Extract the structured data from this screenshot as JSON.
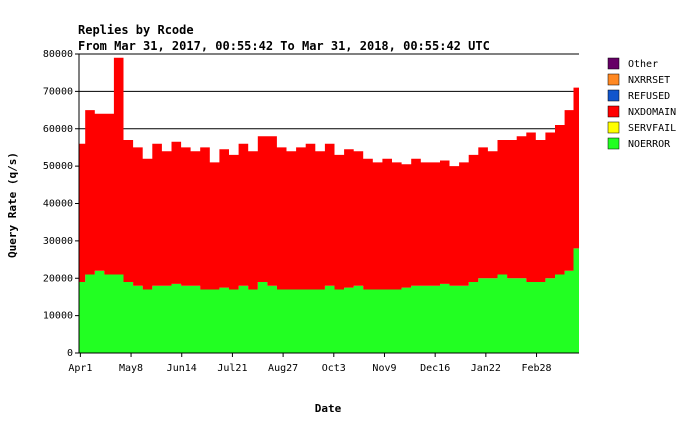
{
  "chart_data": {
    "type": "area",
    "stacked": true,
    "title": "Replies by Rcode",
    "subtitle": "From Mar 31, 2017, 00:55:42 To Mar 31, 2018, 00:55:42 UTC",
    "xlabel": "Date",
    "ylabel": "Query Rate (q/s)",
    "ylim": [
      0,
      80000
    ],
    "yticks": [
      0,
      10000,
      20000,
      30000,
      40000,
      50000,
      60000,
      70000,
      80000
    ],
    "xlim": [
      "2017-03-31",
      "2018-03-31"
    ],
    "xticks": [
      {
        "date": "2017-04-01",
        "label": "Apr1"
      },
      {
        "date": "2017-05-08",
        "label": "May8"
      },
      {
        "date": "2017-06-14",
        "label": "Jun14"
      },
      {
        "date": "2017-07-21",
        "label": "Jul21"
      },
      {
        "date": "2017-08-27",
        "label": "Aug27"
      },
      {
        "date": "2017-10-03",
        "label": "Oct3"
      },
      {
        "date": "2017-11-09",
        "label": "Nov9"
      },
      {
        "date": "2017-12-16",
        "label": "Dec16"
      },
      {
        "date": "2018-01-22",
        "label": "Jan22"
      },
      {
        "date": "2018-02-28",
        "label": "Feb28"
      }
    ],
    "grid": {
      "horizontal_lines_at": [
        60000,
        70000,
        80000
      ]
    },
    "legend": {
      "placement": "right"
    },
    "x": [
      "2017-04-01",
      "2017-04-08",
      "2017-04-15",
      "2017-04-22",
      "2017-04-29",
      "2017-05-06",
      "2017-05-13",
      "2017-05-20",
      "2017-05-27",
      "2017-06-03",
      "2017-06-10",
      "2017-06-17",
      "2017-06-24",
      "2017-07-01",
      "2017-07-08",
      "2017-07-15",
      "2017-07-22",
      "2017-07-29",
      "2017-08-05",
      "2017-08-12",
      "2017-08-19",
      "2017-08-26",
      "2017-09-02",
      "2017-09-09",
      "2017-09-16",
      "2017-09-23",
      "2017-09-30",
      "2017-10-07",
      "2017-10-14",
      "2017-10-21",
      "2017-10-28",
      "2017-11-04",
      "2017-11-11",
      "2017-11-18",
      "2017-11-25",
      "2017-12-02",
      "2017-12-09",
      "2017-12-16",
      "2017-12-23",
      "2017-12-30",
      "2018-01-06",
      "2018-01-13",
      "2018-01-20",
      "2018-01-27",
      "2018-02-03",
      "2018-02-10",
      "2018-02-17",
      "2018-02-24",
      "2018-03-03",
      "2018-03-10",
      "2018-03-17",
      "2018-03-24",
      "2018-03-30"
    ],
    "series": [
      {
        "name": "Other",
        "color": "#660066",
        "values": [
          0,
          0,
          0,
          0,
          0,
          0,
          0,
          0,
          0,
          0,
          0,
          0,
          0,
          0,
          0,
          0,
          0,
          0,
          0,
          0,
          0,
          0,
          0,
          0,
          0,
          0,
          0,
          0,
          0,
          0,
          0,
          0,
          0,
          0,
          0,
          0,
          0,
          0,
          0,
          0,
          0,
          0,
          0,
          0,
          0,
          0,
          0,
          0,
          0,
          0,
          0,
          0,
          0
        ]
      },
      {
        "name": "NXRRSET",
        "color": "#ff8822",
        "values": [
          0,
          0,
          0,
          0,
          0,
          0,
          0,
          0,
          0,
          0,
          0,
          0,
          0,
          0,
          0,
          0,
          0,
          0,
          0,
          0,
          0,
          0,
          0,
          0,
          0,
          0,
          0,
          0,
          0,
          0,
          0,
          0,
          0,
          0,
          0,
          0,
          0,
          0,
          0,
          0,
          0,
          0,
          0,
          0,
          0,
          0,
          0,
          0,
          0,
          0,
          0,
          0,
          0
        ]
      },
      {
        "name": "REFUSED",
        "color": "#1155cc",
        "values": [
          0,
          0,
          0,
          0,
          0,
          0,
          0,
          0,
          0,
          0,
          0,
          0,
          0,
          0,
          0,
          0,
          0,
          0,
          0,
          0,
          0,
          0,
          0,
          0,
          0,
          0,
          0,
          0,
          0,
          0,
          0,
          0,
          0,
          0,
          0,
          0,
          0,
          0,
          0,
          0,
          0,
          0,
          0,
          0,
          0,
          0,
          0,
          0,
          0,
          0,
          0,
          0,
          0
        ]
      },
      {
        "name": "NXDOMAIN",
        "color": "#ff0000",
        "values": [
          37000,
          44000,
          42000,
          43000,
          58000,
          38000,
          37000,
          35000,
          38000,
          36000,
          38000,
          37000,
          36000,
          38000,
          34000,
          37000,
          36000,
          38000,
          37000,
          39000,
          40000,
          38000,
          37000,
          38000,
          39000,
          37000,
          38000,
          36000,
          37000,
          36000,
          35000,
          34000,
          35000,
          34000,
          33000,
          34000,
          33000,
          33000,
          33000,
          32000,
          33000,
          34000,
          35000,
          34000,
          36000,
          37000,
          38000,
          40000,
          38000,
          39000,
          40000,
          43000,
          43000
        ]
      },
      {
        "name": "SERVFAIL",
        "color": "#ffff00",
        "values": [
          0,
          0,
          0,
          0,
          0,
          0,
          0,
          0,
          0,
          0,
          0,
          0,
          0,
          0,
          0,
          0,
          0,
          0,
          0,
          0,
          0,
          0,
          0,
          0,
          0,
          0,
          0,
          0,
          0,
          0,
          0,
          0,
          0,
          0,
          0,
          0,
          0,
          0,
          0,
          0,
          0,
          0,
          0,
          0,
          0,
          0,
          0,
          0,
          0,
          0,
          0,
          0,
          0
        ]
      },
      {
        "name": "NOERROR",
        "color": "#22ff22",
        "values": [
          19000,
          21000,
          22000,
          21000,
          21000,
          19000,
          18000,
          17000,
          18000,
          18000,
          18500,
          18000,
          18000,
          17000,
          17000,
          17500,
          17000,
          18000,
          17000,
          19000,
          18000,
          17000,
          17000,
          17000,
          17000,
          17000,
          18000,
          17000,
          17500,
          18000,
          17000,
          17000,
          17000,
          17000,
          17500,
          18000,
          18000,
          18000,
          18500,
          18000,
          18000,
          19000,
          20000,
          20000,
          21000,
          20000,
          20000,
          19000,
          19000,
          20000,
          21000,
          22000,
          28000
        ]
      }
    ]
  }
}
